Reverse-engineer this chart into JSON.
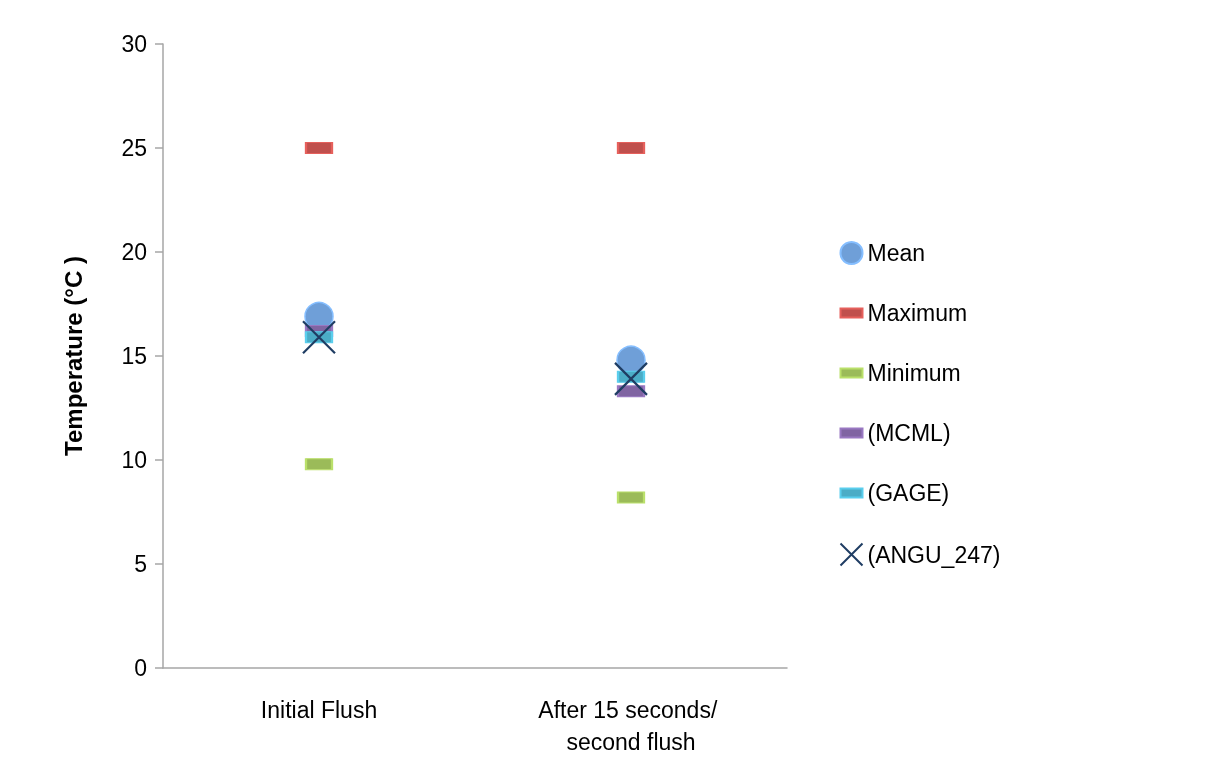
{
  "chart_data": {
    "type": "scatter",
    "ylabel": "Temperature (°C )",
    "categories": [
      "Initial Flush",
      "After 15 seconds/ second flush"
    ],
    "series": [
      {
        "name": "Mean",
        "color": "#6f9fd8",
        "marker": "circle",
        "values": [
          16.9,
          14.8
        ]
      },
      {
        "name": "Maximum",
        "color": "#c0504d",
        "marker": "square",
        "values": [
          25,
          25
        ]
      },
      {
        "name": "Minimum",
        "color": "#9bbb59",
        "marker": "square",
        "values": [
          9.8,
          8.2
        ]
      },
      {
        "name": "(MCML)",
        "color": "#8064a2",
        "marker": "square",
        "values": [
          16.2,
          13.3
        ]
      },
      {
        "name": "(GAGE)",
        "color": "#4bacc6",
        "marker": "square",
        "values": [
          15.9,
          14.0
        ]
      },
      {
        "name": "(ANGU_247)",
        "color": "#1f3d63",
        "marker": "cross",
        "values": [
          15.9,
          13.9
        ]
      }
    ],
    "ylim": [
      0,
      30
    ],
    "yticks": [
      0,
      5,
      10,
      15,
      20,
      25,
      30
    ],
    "grid": false,
    "legend": "right"
  }
}
